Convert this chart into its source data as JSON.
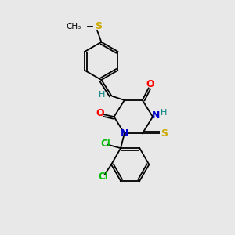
{
  "background_color": "#e8e8e8",
  "bond_color": "#000000",
  "atom_colors": {
    "O": "#ff0000",
    "N": "#0000cd",
    "S": "#ccaa00",
    "Cl": "#00bb00",
    "H": "#008080",
    "C": "#000000"
  },
  "figsize": [
    3.0,
    3.0
  ],
  "dpi": 100
}
